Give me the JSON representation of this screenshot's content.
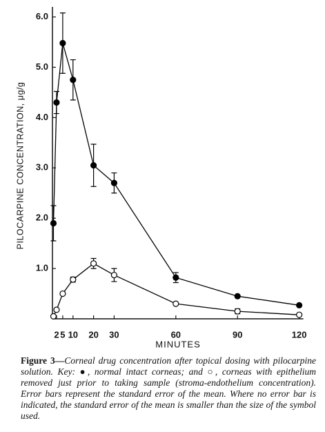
{
  "chart_data": {
    "type": "line",
    "y_label": "PILOCARPINE CONCENTRATION, μg/g",
    "x_label": "MINUTES",
    "x": [
      0.5,
      2,
      5,
      10,
      20,
      30,
      60,
      90,
      120
    ],
    "series": [
      {
        "color": "#000000",
        "marker": "filled",
        "values": [
          1.9,
          4.3,
          5.48,
          4.75,
          3.05,
          2.7,
          0.82,
          0.45,
          0.27
        ],
        "errors": [
          0.35,
          0.22,
          0.6,
          0.4,
          0.42,
          0.2,
          0.1,
          null,
          null
        ]
      },
      {
        "color": "#000000",
        "marker": "open",
        "values": [
          0.05,
          0.18,
          0.5,
          0.78,
          1.1,
          0.87,
          0.3,
          0.15,
          0.08
        ],
        "errors": [
          null,
          null,
          null,
          0.05,
          0.1,
          0.13,
          null,
          0.05,
          null
        ]
      }
    ],
    "xlim": [
      0,
      122
    ],
    "ylim": [
      0,
      6.2
    ],
    "xticks": [
      2,
      5,
      10,
      20,
      30,
      60,
      90,
      120
    ],
    "yticks": [
      {
        "value": 1,
        "label": "1.0"
      },
      {
        "value": 2,
        "label": "2.0"
      },
      {
        "value": 3,
        "label": "3.0"
      },
      {
        "value": 4,
        "label": "4.0"
      },
      {
        "value": 5,
        "label": "5.0"
      },
      {
        "value": 6,
        "label": "6.0"
      }
    ]
  },
  "figure_caption": {
    "label": "Figure 3—",
    "text": "Corneal drug concentration after topical dosing with pilocarpine solution. Key: ●, normal intact corneas; and ○, corneas with epithelium removed just prior to taking sample (stroma-endothelium concentration). Error bars represent the standard error of the mean. Where no error bar is indicated, the standard error of the mean is smaller than the size of the symbol used."
  }
}
